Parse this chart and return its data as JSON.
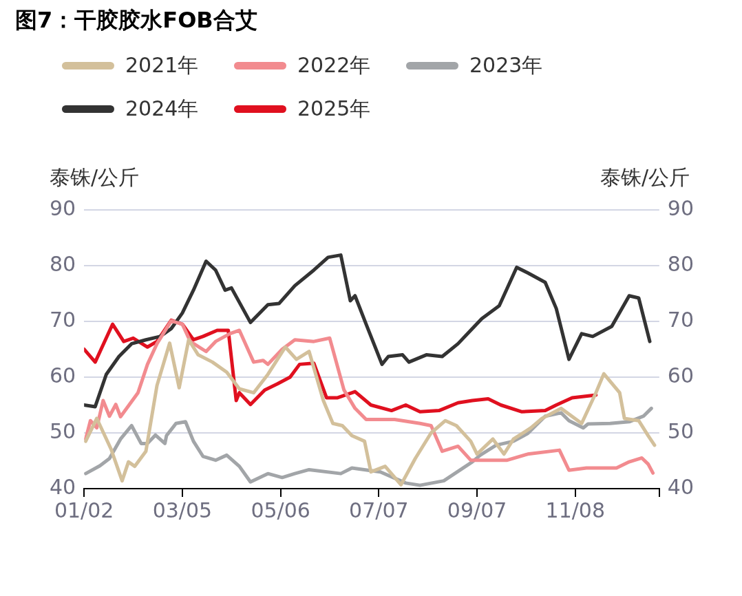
{
  "chart_data": {
    "type": "line",
    "title": "图7：干胶胶水FOB合艾",
    "ylabel": "泰铢/公斤",
    "y2label": "泰铢/公斤",
    "xlim": [
      "--01-02",
      "--12-31"
    ],
    "xticks": [
      {
        "value": "--01-02",
        "label": "01/02"
      },
      {
        "value": "--03-05",
        "label": "03/05"
      },
      {
        "value": "--05-06",
        "label": "05/06"
      },
      {
        "value": "--07-07",
        "label": "07/07"
      },
      {
        "value": "--09-07",
        "label": "09/07"
      },
      {
        "value": "--11-08",
        "label": "11/08"
      },
      {
        "value": "--12-31",
        "label": null
      }
    ],
    "ylim": [
      40,
      90
    ],
    "yticks": [
      40,
      50,
      60,
      70,
      80,
      90
    ],
    "y2lim": [
      40,
      90
    ],
    "y2ticks": [
      40,
      50,
      60,
      70,
      80,
      90
    ],
    "grid": "y",
    "legend": "top",
    "marker": "none",
    "line_style": "solid",
    "series": [
      {
        "name": "2021年",
        "color": "#d3c09b",
        "x": [
          "--01-03",
          "--01-10",
          "--01-19",
          "--01-26",
          "--01-30",
          "--02-03",
          "--02-10",
          "--02-17",
          "--02-25",
          "--03-03",
          "--03-09",
          "--03-15",
          "--03-24",
          "--04-02",
          "--04-10",
          "--04-19",
          "--04-28",
          "--05-09",
          "--05-16",
          "--05-24",
          "--06-02",
          "--06-08",
          "--06-14",
          "--06-20",
          "--06-28",
          "--07-02",
          "--07-11",
          "--07-21",
          "--07-30",
          "--08-09",
          "--08-18",
          "--08-25",
          "--09-03",
          "--09-07",
          "--09-17",
          "--09-24",
          "--09-30",
          "--10-11",
          "--10-18",
          "--10-30",
          "--11-12",
          "--11-21",
          "--11-26",
          "--12-06",
          "--12-09",
          "--12-18",
          "--12-24",
          "--12-28"
        ],
        "values": [
          48.5,
          52.6,
          47.1,
          41.4,
          44.8,
          44,
          46.7,
          58.5,
          66.1,
          58.1,
          66.7,
          64,
          62.7,
          60.9,
          57.9,
          57.2,
          60.5,
          65.4,
          63.2,
          64.6,
          55.8,
          51.7,
          51.3,
          49.5,
          48.5,
          43,
          44,
          40.7,
          45.4,
          50,
          52.2,
          51.3,
          48.5,
          46.2,
          48.9,
          46.2,
          48.9,
          50.9,
          52.6,
          54.4,
          51.7,
          57.2,
          60.6,
          57.2,
          52.6,
          52.2,
          49.5,
          47.8
        ]
      },
      {
        "name": "2022年",
        "color": "#f28b8f",
        "x": [
          "--01-03",
          "--01-06",
          "--01-10",
          "--01-14",
          "--01-18",
          "--01-22",
          "--01-25",
          "--02-05",
          "--02-11",
          "--02-17",
          "--02-26",
          "--03-05",
          "--03-10",
          "--03-20",
          "--03-26",
          "--04-04",
          "--04-10",
          "--04-19",
          "--04-25",
          "--04-28",
          "--05-07",
          "--05-15",
          "--05-27",
          "--06-06",
          "--06-15",
          "--06-22",
          "--06-29",
          "--07-17",
          "--08-02",
          "--08-09",
          "--08-16",
          "--08-26",
          "--09-03",
          "--09-26",
          "--10-09",
          "--10-29",
          "--11-04",
          "--11-15",
          "--12-04",
          "--12-12",
          "--12-20",
          "--12-24",
          "--12-27"
        ],
        "values": [
          48.9,
          52.2,
          50.9,
          55.8,
          53,
          55.1,
          52.9,
          57.2,
          62.3,
          66,
          70.1,
          69.5,
          66.4,
          64.6,
          66.4,
          67.8,
          68.4,
          62.7,
          63,
          62.3,
          65,
          66.7,
          66.4,
          67,
          57.7,
          54.4,
          52.4,
          52.4,
          51.7,
          51.3,
          46.7,
          47.6,
          45.1,
          45.1,
          46.2,
          46.9,
          43.3,
          43.7,
          43.7,
          44.8,
          45.5,
          44.4,
          42.8
        ]
      },
      {
        "name": "2023年",
        "color": "#a2a5a8",
        "x": [
          "--01-03",
          "--01-12",
          "--01-18",
          "--01-25",
          "--02-01",
          "--02-07",
          "--02-11",
          "--02-16",
          "--02-22",
          "--02-23",
          "--03-01",
          "--03-07",
          "--03-12",
          "--03-18",
          "--03-26",
          "--04-02",
          "--04-10",
          "--04-17",
          "--04-28",
          "--05-07",
          "--05-15",
          "--05-24",
          "--06-13",
          "--06-20",
          "--07-08",
          "--07-24",
          "--08-02",
          "--08-17",
          "--09-04",
          "--09-09",
          "--09-19",
          "--09-30",
          "--10-09",
          "--10-20",
          "--10-30",
          "--11-04",
          "--11-13",
          "--11-16",
          "--11-30",
          "--12-12",
          "--12-21",
          "--12-26"
        ],
        "values": [
          42.7,
          44.1,
          45.4,
          48.9,
          51.3,
          48.1,
          48.1,
          49.6,
          48.1,
          49.5,
          51.7,
          52,
          48.5,
          45.8,
          45.1,
          46,
          44,
          41.2,
          42.7,
          42,
          42.7,
          43.4,
          42.7,
          43.7,
          43,
          41,
          40.6,
          41.4,
          44.8,
          46,
          47.8,
          48.5,
          49.9,
          53,
          53.6,
          52.2,
          50.9,
          51.6,
          51.7,
          52,
          53,
          54.4
        ]
      },
      {
        "name": "2024年",
        "color": "#333333",
        "x": [
          "--01-02",
          "--01-09",
          "--01-16",
          "--01-24",
          "--02-01",
          "--02-10",
          "--02-19",
          "--02-26",
          "--03-05",
          "--03-12",
          "--03-20",
          "--03-26",
          "--04-01",
          "--04-05",
          "--04-17",
          "--04-28",
          "--05-05",
          "--05-15",
          "--05-27",
          "--06-05",
          "--06-13",
          "--06-19",
          "--06-22",
          "--06-29",
          "--07-09",
          "--07-13",
          "--07-22",
          "--07-26",
          "--08-06",
          "--08-16",
          "--08-26",
          "--09-04",
          "--09-10",
          "--09-21",
          "--10-02",
          "--10-09",
          "--10-20",
          "--10-27",
          "--11-04",
          "--11-12",
          "--11-19",
          "--12-01",
          "--12-12",
          "--12-18",
          "--12-25"
        ],
        "values": [
          55,
          54.7,
          60.5,
          63.7,
          66,
          66.7,
          67.3,
          68.7,
          71.5,
          75.6,
          80.8,
          79.2,
          75.6,
          76,
          69.8,
          73,
          73.2,
          76.4,
          79.2,
          81.5,
          81.9,
          73.7,
          74.6,
          69.5,
          62.3,
          63.7,
          64,
          62.7,
          64,
          63.7,
          66,
          68.7,
          70.5,
          72.8,
          79.7,
          78.7,
          77,
          72.3,
          63.2,
          67.8,
          67.3,
          69.1,
          74.6,
          74.2,
          66.4
        ]
      },
      {
        "name": "2025年",
        "color": "#e0101f",
        "x": [
          "--01-02",
          "--01-09",
          "--01-20",
          "--01-27",
          "--02-02",
          "--02-11",
          "--02-17",
          "--02-26",
          "--03-05",
          "--03-12",
          "--03-18",
          "--03-27",
          "--04-03",
          "--04-08",
          "--04-10",
          "--04-17",
          "--04-26",
          "--05-04",
          "--05-12",
          "--05-18",
          "--05-27",
          "--06-04",
          "--06-11",
          "--06-22",
          "--07-02",
          "--07-15",
          "--07-24",
          "--08-02",
          "--08-14",
          "--08-26",
          "--09-04",
          "--09-14",
          "--09-22",
          "--10-05",
          "--10-20",
          "--10-27",
          "--11-06",
          "--11-21"
        ],
        "values": [
          65,
          62.7,
          69.5,
          66.4,
          67,
          65.4,
          66.4,
          70.2,
          69.5,
          66.7,
          67.3,
          68.4,
          68.4,
          55.8,
          57.2,
          55.1,
          57.7,
          58.8,
          60,
          62.3,
          62.5,
          56.3,
          56.3,
          57.4,
          55,
          54,
          55,
          53.8,
          54,
          55.4,
          55.8,
          56.1,
          55,
          53.8,
          54,
          55,
          56.3,
          56.8
        ]
      }
    ]
  }
}
